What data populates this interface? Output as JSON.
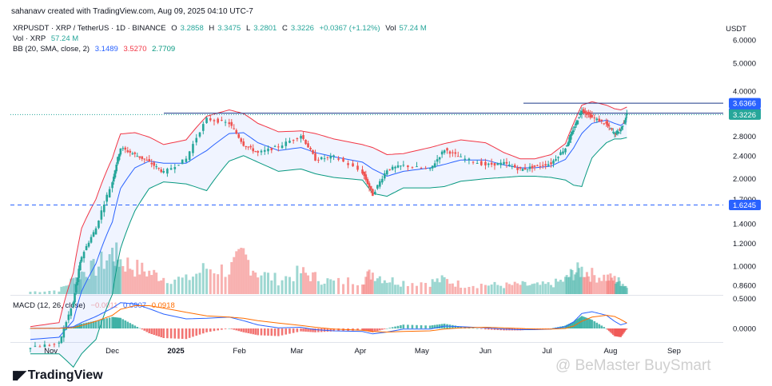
{
  "header": {
    "created_by": "sahanavv created with TradingView.com, Aug 09, 2025 04:10 UTC-7"
  },
  "legend": {
    "symbol": "XRPUSDT · XRP / TetherUS · 1D · BINANCE",
    "o_label": "O",
    "o_value": "3.2858",
    "h_label": "H",
    "h_value": "3.3475",
    "l_label": "L",
    "l_value": "3.2801",
    "c_label": "C",
    "c_value": "3.3226",
    "change": "+0.0367 (+1.12%)",
    "vol_label": "Vol",
    "vol_value": "57.24 M",
    "vol_line_label": "Vol · XRP",
    "vol_line_value": "57.24 M",
    "bb_label": "BB (20, SMA, close, 2)",
    "bb_basis": "3.1489",
    "bb_upper": "3.5270",
    "bb_lower": "2.7709",
    "macd_label": "MACD (12, 26, close)",
    "macd_hist": "−0.0011",
    "macd_line": "0.0907",
    "macd_signal": "0.0918"
  },
  "colors": {
    "up": "#26a69a",
    "down": "#ef5350",
    "bb_basis": "#2962ff",
    "bb_upper": "#f23645",
    "bb_lower": "#089981",
    "macd_line": "#2962ff",
    "macd_signal": "#ff6d00",
    "price_tag": "#2962ff",
    "current_tag": "#26a69a"
  },
  "price_axis": {
    "unit": "USDT",
    "scale": "log",
    "ticks": [
      "6.0000",
      "5.0000",
      "4.0000",
      "2.8000",
      "2.4000",
      "2.0000",
      "1.7000",
      "1.4000",
      "1.2000",
      "1.0000",
      "0.8600"
    ],
    "labels": [
      {
        "value": 3.6366,
        "text": "3.6366",
        "kind": "line"
      },
      {
        "value": 3.3592,
        "text": "3.3592",
        "kind": "line"
      },
      {
        "value": 3.3226,
        "text": "3.3226",
        "kind": "current"
      },
      {
        "value": 1.6245,
        "text": "1.6245",
        "kind": "dashed"
      }
    ]
  },
  "macd_axis": {
    "ticks": [
      "0.5000",
      "0.0000"
    ]
  },
  "time_axis": {
    "labels": [
      "Nov",
      "Dec",
      "2025",
      "Feb",
      "Mar",
      "Apr",
      "May",
      "Jun",
      "Jul",
      "Aug",
      "Sep"
    ]
  },
  "footer": {
    "logo": "TradingView",
    "watermark": "@ BeMaster BuySmart"
  },
  "chart_data": {
    "type": "candlestick",
    "title": "XRPUSDT · XRP / TetherUS · 1D · BINANCE",
    "ylabel": "USDT",
    "y_scale": "log",
    "ylim": [
      0.8,
      6.3
    ],
    "dates": [
      "2024-10-22",
      "2024-11-05",
      "2024-11-12",
      "2024-11-16",
      "2024-11-23",
      "2024-12-01",
      "2024-12-05",
      "2024-12-12",
      "2024-12-19",
      "2024-12-26",
      "2025-01-06",
      "2025-01-16",
      "2025-01-27",
      "2025-02-03",
      "2025-02-10",
      "2025-02-20",
      "2025-03-03",
      "2025-03-10",
      "2025-03-19",
      "2025-04-02",
      "2025-04-07",
      "2025-04-14",
      "2025-04-22",
      "2025-05-05",
      "2025-05-12",
      "2025-05-20",
      "2025-06-01",
      "2025-06-10",
      "2025-06-18",
      "2025-06-25",
      "2025-07-03",
      "2025-07-10",
      "2025-07-14",
      "2025-07-18",
      "2025-07-23",
      "2025-07-30",
      "2025-08-03",
      "2025-08-06",
      "2025-08-09"
    ],
    "close": [
      0.53,
      0.54,
      0.75,
      1.08,
      1.35,
      1.95,
      2.55,
      2.42,
      2.28,
      2.1,
      2.34,
      3.21,
      3.1,
      2.62,
      2.45,
      2.58,
      2.82,
      2.33,
      2.38,
      2.1,
      1.76,
      2.15,
      2.22,
      2.15,
      2.52,
      2.36,
      2.23,
      2.26,
      2.15,
      2.2,
      2.26,
      2.55,
      2.95,
      3.45,
      3.25,
      3.08,
      2.85,
      2.95,
      3.3226
    ],
    "bb_basis": [
      0.56,
      0.57,
      0.65,
      0.82,
      1.02,
      1.42,
      1.85,
      2.18,
      2.3,
      2.26,
      2.26,
      2.5,
      2.86,
      2.88,
      2.66,
      2.5,
      2.56,
      2.46,
      2.38,
      2.28,
      2.16,
      2.04,
      2.12,
      2.18,
      2.24,
      2.32,
      2.32,
      2.23,
      2.18,
      2.18,
      2.21,
      2.33,
      2.55,
      2.86,
      3.1,
      3.18,
      3.1,
      3.05,
      3.1489
    ],
    "bb_upper": [
      0.62,
      0.64,
      0.95,
      1.35,
      1.7,
      2.35,
      2.85,
      2.88,
      2.78,
      2.62,
      2.72,
      3.28,
      3.45,
      3.35,
      3.1,
      2.9,
      2.92,
      2.86,
      2.74,
      2.62,
      2.56,
      2.42,
      2.44,
      2.56,
      2.64,
      2.72,
      2.66,
      2.46,
      2.34,
      2.34,
      2.42,
      2.64,
      3.1,
      3.58,
      3.68,
      3.58,
      3.48,
      3.45,
      3.527
    ],
    "bb_lower": [
      0.5,
      0.5,
      0.45,
      0.5,
      0.56,
      0.8,
      1.15,
      1.55,
      1.85,
      1.95,
      1.92,
      1.82,
      2.3,
      2.4,
      2.28,
      2.12,
      2.16,
      2.08,
      2.02,
      1.98,
      1.78,
      1.74,
      1.86,
      1.86,
      1.88,
      1.96,
      2.0,
      2.02,
      2.04,
      2.04,
      2.02,
      1.98,
      1.9,
      1.88,
      2.36,
      2.66,
      2.74,
      2.74,
      2.7709
    ],
    "macd_line": [
      0.002,
      0.005,
      0.03,
      0.1,
      0.2,
      0.34,
      0.43,
      0.41,
      0.33,
      0.24,
      0.16,
      0.17,
      0.19,
      0.13,
      0.06,
      0.01,
      0.02,
      -0.02,
      -0.04,
      -0.05,
      -0.09,
      -0.06,
      -0.01,
      -0.01,
      0.04,
      0.03,
      0.01,
      -0.01,
      -0.02,
      -0.02,
      -0.01,
      0.03,
      0.11,
      0.25,
      0.28,
      0.22,
      0.12,
      0.06,
      0.0907
    ],
    "macd_signal": [
      0.001,
      0.003,
      0.015,
      0.05,
      0.12,
      0.22,
      0.32,
      0.38,
      0.38,
      0.34,
      0.27,
      0.21,
      0.19,
      0.17,
      0.13,
      0.09,
      0.05,
      0.02,
      -0.01,
      -0.03,
      -0.05,
      -0.06,
      -0.05,
      -0.04,
      -0.01,
      0.01,
      0.02,
      0.01,
      0.0,
      -0.01,
      -0.01,
      0.0,
      0.04,
      0.12,
      0.19,
      0.22,
      0.2,
      0.15,
      0.0918
    ],
    "volume_relative": [
      0.05,
      0.08,
      0.3,
      0.45,
      0.55,
      0.85,
      0.7,
      0.55,
      0.45,
      0.35,
      0.3,
      0.55,
      0.5,
      0.8,
      0.45,
      0.3,
      0.45,
      0.35,
      0.25,
      0.3,
      0.45,
      0.3,
      0.25,
      0.25,
      0.3,
      0.2,
      0.2,
      0.18,
      0.2,
      0.18,
      0.2,
      0.3,
      0.45,
      0.5,
      0.4,
      0.35,
      0.3,
      0.25,
      0.15
    ],
    "horizontal_lines": [
      {
        "value": 3.6366,
        "style": "solid"
      },
      {
        "value": 3.3592,
        "style": "solid"
      },
      {
        "value": 1.6245,
        "style": "dashed"
      }
    ],
    "x_tick_labels": [
      "Nov",
      "Dec",
      "2025",
      "Feb",
      "Mar",
      "Apr",
      "May",
      "Jun",
      "Jul",
      "Aug",
      "Sep"
    ],
    "grid": false,
    "legend_position": "top-left"
  }
}
